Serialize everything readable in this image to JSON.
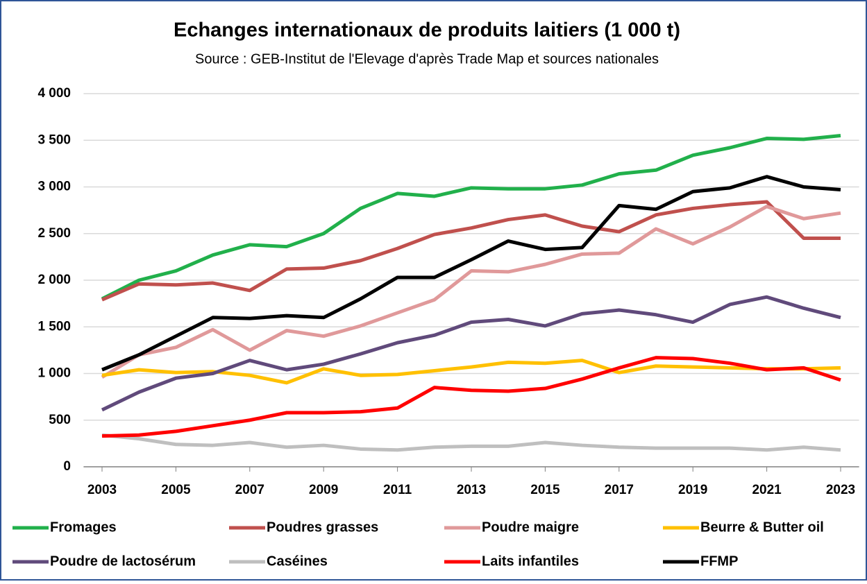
{
  "chart_data": {
    "type": "line",
    "title": "Echanges internationaux de produits laitiers (1 000 t)",
    "subtitle": "Source : GEB-Institut de l'Elevage d'après Trade Map et sources nationales",
    "x": [
      2003,
      2004,
      2005,
      2006,
      2007,
      2008,
      2009,
      2010,
      2011,
      2012,
      2013,
      2014,
      2015,
      2016,
      2017,
      2018,
      2019,
      2020,
      2021,
      2022,
      2023
    ],
    "xlim": [
      2002.5,
      2023.5
    ],
    "xticks": [
      2003,
      2005,
      2007,
      2009,
      2011,
      2013,
      2015,
      2017,
      2019,
      2021,
      2023
    ],
    "ylim": [
      0,
      4000
    ],
    "yticks": [
      0,
      500,
      {
        "value": 1000,
        "label": "1 000"
      },
      {
        "value": 1500,
        "label": "1 500"
      },
      {
        "value": 2000,
        "label": "2 000"
      },
      {
        "value": 2500,
        "label": "2 500"
      },
      {
        "value": 3000,
        "label": "3 000"
      },
      {
        "value": 3500,
        "label": "3 500"
      },
      {
        "value": 4000,
        "label": "4 000"
      }
    ],
    "grid": true,
    "legend": "bottom",
    "series": [
      {
        "name": "Fromages",
        "color": "#21b04b",
        "values": [
          1800,
          2000,
          2100,
          2270,
          2380,
          2360,
          2500,
          2770,
          2930,
          2900,
          2990,
          2980,
          2980,
          3020,
          3140,
          3180,
          3340,
          3420,
          3520,
          3510,
          3550
        ]
      },
      {
        "name": "Poudres grasses",
        "color": "#c0504d",
        "values": [
          1790,
          1960,
          1950,
          1970,
          1890,
          2120,
          2130,
          2210,
          2340,
          2490,
          2560,
          2650,
          2700,
          2580,
          2520,
          2700,
          2770,
          2810,
          2840,
          2450,
          2450
        ]
      },
      {
        "name": "Poudre maigre",
        "color": "#e0999a",
        "values": [
          960,
          1200,
          1280,
          1470,
          1250,
          1460,
          1400,
          1510,
          1650,
          1790,
          2100,
          2090,
          2170,
          2280,
          2290,
          2550,
          2390,
          2570,
          2790,
          2660,
          2720
        ]
      },
      {
        "name": "Beurre & Butter oil",
        "color": "#ffc000",
        "values": [
          980,
          1040,
          1010,
          1020,
          980,
          900,
          1050,
          980,
          990,
          1030,
          1070,
          1120,
          1110,
          1140,
          1010,
          1080,
          1070,
          1060,
          1050,
          1050,
          1060
        ]
      },
      {
        "name": "Poudre de lactosérum",
        "color": "#604a7b",
        "values": [
          610,
          800,
          950,
          1000,
          1140,
          1040,
          1100,
          1210,
          1330,
          1410,
          1550,
          1580,
          1510,
          1640,
          1680,
          1630,
          1550,
          1740,
          1820,
          1700,
          1600
        ]
      },
      {
        "name": "Caséines",
        "color": "#bfbfbf",
        "values": [
          340,
          300,
          240,
          230,
          260,
          210,
          230,
          190,
          180,
          210,
          220,
          220,
          260,
          230,
          210,
          200,
          200,
          200,
          180,
          210,
          180
        ]
      },
      {
        "name": "Laits infantiles",
        "color": "#ff0000",
        "values": [
          330,
          340,
          380,
          440,
          500,
          580,
          580,
          590,
          630,
          850,
          820,
          810,
          840,
          940,
          1060,
          1170,
          1160,
          1110,
          1040,
          1060,
          930
        ]
      },
      {
        "name": "FFMP",
        "color": "#000000",
        "values": [
          1040,
          1200,
          1400,
          1600,
          1590,
          1620,
          1600,
          1800,
          2030,
          2030,
          2220,
          2420,
          2330,
          2350,
          2800,
          2760,
          2950,
          2990,
          3110,
          3000,
          2970
        ]
      }
    ]
  }
}
